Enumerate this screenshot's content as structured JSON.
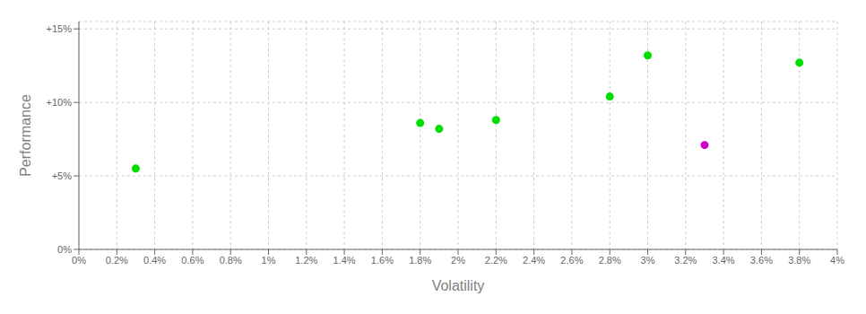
{
  "chart_data": {
    "type": "scatter",
    "xlabel": "Volatility",
    "ylabel": "Performance",
    "x": [
      0.003,
      0.018,
      0.019,
      0.022,
      0.028,
      0.03,
      0.038,
      0.033
    ],
    "values": [
      0.055,
      0.086,
      0.082,
      0.088,
      0.104,
      0.132,
      0.127,
      0.071
    ],
    "colors": [
      "#00dd00",
      "#00dd00",
      "#00dd00",
      "#00dd00",
      "#00dd00",
      "#00dd00",
      "#00dd00",
      "#cc00cc"
    ],
    "xlim": [
      0.0,
      0.04
    ],
    "ylim": [
      0.0,
      0.155
    ],
    "xticks": [
      {
        "value": 0.0,
        "label": "0%"
      },
      {
        "value": 0.002,
        "label": "0.2%"
      },
      {
        "value": 0.004,
        "label": "0.4%"
      },
      {
        "value": 0.006,
        "label": "0.6%"
      },
      {
        "value": 0.008,
        "label": "0.8%"
      },
      {
        "value": 0.01,
        "label": "1%"
      },
      {
        "value": 0.012,
        "label": "1.2%"
      },
      {
        "value": 0.014,
        "label": "1.4%"
      },
      {
        "value": 0.016,
        "label": "1.6%"
      },
      {
        "value": 0.018,
        "label": "1.8%"
      },
      {
        "value": 0.02,
        "label": "2%"
      },
      {
        "value": 0.022,
        "label": "2.2%"
      },
      {
        "value": 0.024,
        "label": "2.4%"
      },
      {
        "value": 0.026,
        "label": "2.6%"
      },
      {
        "value": 0.028,
        "label": "2.8%"
      },
      {
        "value": 0.03,
        "label": "3%"
      },
      {
        "value": 0.032,
        "label": "3.2%"
      },
      {
        "value": 0.034,
        "label": "3.4%"
      },
      {
        "value": 0.036,
        "label": "3.6%"
      },
      {
        "value": 0.038,
        "label": "3.8%"
      },
      {
        "value": 0.04,
        "label": "4%"
      }
    ],
    "yticks": [
      {
        "value": 0.0,
        "label": "0%"
      },
      {
        "value": 0.05,
        "label": "+5%"
      },
      {
        "value": 0.1,
        "label": "+10%"
      },
      {
        "value": 0.15,
        "label": "+15%"
      }
    ],
    "grid": true
  }
}
